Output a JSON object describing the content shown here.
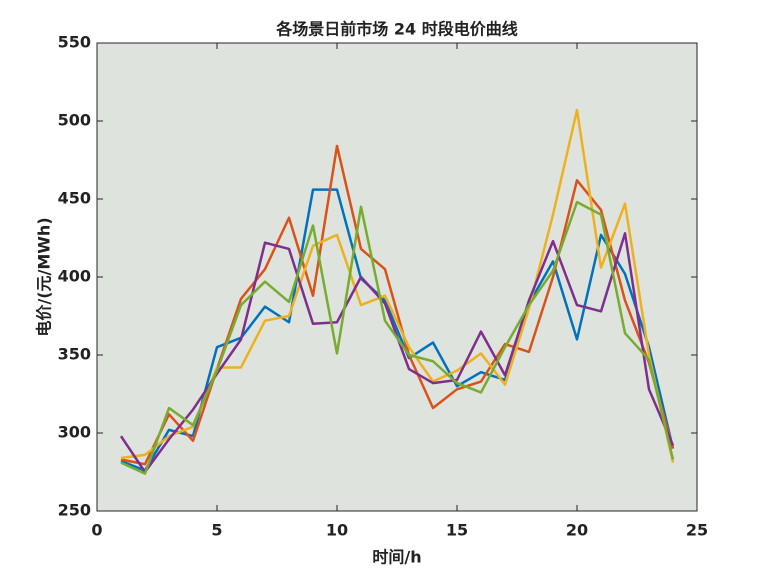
{
  "chart_data": {
    "type": "line",
    "title": "各场景日前市场 24 时段电价曲线",
    "xlabel": "时间/h",
    "ylabel": "电价/(元/MWh)",
    "x": [
      1,
      2,
      3,
      4,
      5,
      6,
      7,
      8,
      9,
      10,
      11,
      12,
      13,
      14,
      15,
      16,
      17,
      18,
      19,
      20,
      21,
      22,
      23,
      24
    ],
    "series": [
      {
        "color": "#0072BD",
        "values": [
          282,
          276,
          302,
          298,
          355,
          361,
          381,
          371,
          456,
          456,
          399,
          385,
          348,
          358,
          330,
          339,
          334,
          383,
          410,
          360,
          427,
          402,
          355,
          290
        ]
      },
      {
        "color": "#D95319",
        "values": [
          283,
          280,
          312,
          295,
          341,
          386,
          405,
          438,
          388,
          484,
          418,
          405,
          350,
          316,
          328,
          333,
          357,
          352,
          400,
          462,
          443,
          385,
          345,
          290
        ]
      },
      {
        "color": "#EDB120",
        "values": [
          284,
          286,
          298,
          304,
          342,
          342,
          372,
          375,
          420,
          427,
          382,
          388,
          355,
          333,
          340,
          351,
          331,
          380,
          440,
          507,
          406,
          447,
          350,
          281
        ]
      },
      {
        "color": "#7E2F8E",
        "values": [
          298,
          275,
          296,
          315,
          338,
          360,
          422,
          418,
          370,
          371,
          400,
          383,
          341,
          332,
          334,
          365,
          337,
          385,
          423,
          382,
          378,
          428,
          328,
          292
        ]
      },
      {
        "color": "#77AC30",
        "values": [
          281,
          274,
          316,
          305,
          340,
          382,
          397,
          384,
          433,
          351,
          445,
          372,
          350,
          346,
          332,
          326,
          355,
          382,
          404,
          448,
          440,
          364,
          347,
          283
        ]
      }
    ],
    "xlim": [
      0,
      25
    ],
    "xticks": [
      0,
      5,
      10,
      15,
      20,
      25
    ],
    "ylim": [
      250,
      550
    ],
    "yticks": [
      250,
      300,
      350,
      400,
      450,
      500,
      550
    ],
    "plot_background": "#dfe3de"
  }
}
